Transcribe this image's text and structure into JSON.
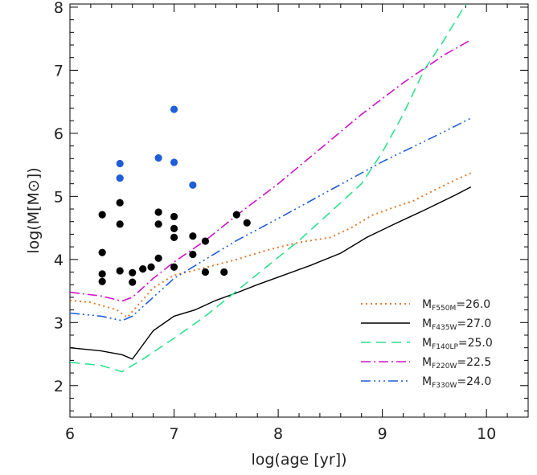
{
  "chart_data": {
    "type": "scatter",
    "xlabel": "log(age [yr])",
    "ylabel": "log(M[M⊙])",
    "xlim": [
      6,
      10.4
    ],
    "ylim": [
      1.5,
      8.05
    ],
    "x_ticks": [
      "6",
      "7",
      "8",
      "9",
      "10"
    ],
    "y_ticks": [
      "2",
      "3",
      "4",
      "5",
      "6",
      "7",
      "8"
    ],
    "grid": false,
    "legend_position": "bottom-right",
    "scatter_series": [
      {
        "color": "#000000",
        "points": [
          [
            6.31,
            4.71
          ],
          [
            6.31,
            4.11
          ],
          [
            6.31,
            3.77
          ],
          [
            6.31,
            3.65
          ],
          [
            6.48,
            4.9
          ],
          [
            6.48,
            4.56
          ],
          [
            6.48,
            3.82
          ],
          [
            6.6,
            3.79
          ],
          [
            6.6,
            3.64
          ],
          [
            6.7,
            3.85
          ],
          [
            6.78,
            3.88
          ],
          [
            6.85,
            4.75
          ],
          [
            6.85,
            4.56
          ],
          [
            6.85,
            4.02
          ],
          [
            7.0,
            4.68
          ],
          [
            7.0,
            4.49
          ],
          [
            7.0,
            4.35
          ],
          [
            7.0,
            3.88
          ],
          [
            7.18,
            4.37
          ],
          [
            7.18,
            4.08
          ],
          [
            7.3,
            4.29
          ],
          [
            7.3,
            3.8
          ],
          [
            7.48,
            3.8
          ],
          [
            7.6,
            4.71
          ],
          [
            7.7,
            4.58
          ]
        ]
      },
      {
        "color": "#1f5ed8",
        "points": [
          [
            6.48,
            5.52
          ],
          [
            6.48,
            5.29
          ],
          [
            6.85,
            5.61
          ],
          [
            7.0,
            6.38
          ],
          [
            7.0,
            5.54
          ],
          [
            7.18,
            5.18
          ]
        ]
      }
    ],
    "curves": [
      {
        "label_main": "M",
        "label_sub": "F550M",
        "label_val": "=26.0",
        "color": "#e07a30",
        "dash": "2,4",
        "width": 2,
        "x": [
          6.0,
          6.2,
          6.45,
          6.55,
          6.8,
          7.0,
          7.3,
          7.6,
          7.9,
          8.2,
          8.5,
          8.7,
          8.9,
          9.1,
          9.3,
          9.5,
          9.7,
          9.85
        ],
        "y": [
          3.35,
          3.32,
          3.2,
          3.08,
          3.55,
          3.75,
          3.87,
          4.0,
          4.15,
          4.27,
          4.35,
          4.5,
          4.7,
          4.82,
          4.93,
          5.1,
          5.26,
          5.37
        ]
      },
      {
        "label_main": "M",
        "label_sub": "F435W",
        "label_val": "=27.0",
        "color": "#000000",
        "dash": "",
        "width": 1.4,
        "x": [
          6.0,
          6.3,
          6.5,
          6.6,
          6.8,
          7.0,
          7.2,
          7.4,
          7.6,
          7.8,
          8.0,
          8.3,
          8.6,
          8.85,
          9.1,
          9.4,
          9.7,
          9.85
        ],
        "y": [
          2.6,
          2.55,
          2.49,
          2.42,
          2.87,
          3.1,
          3.2,
          3.35,
          3.47,
          3.6,
          3.72,
          3.9,
          4.1,
          4.35,
          4.55,
          4.78,
          5.02,
          5.15
        ]
      },
      {
        "label_main": "M",
        "label_sub": "F140LP",
        "label_val": "=25.0",
        "color": "#2ee08c",
        "dash": "12,7",
        "width": 1.6,
        "x": [
          6.0,
          6.3,
          6.5,
          6.7,
          7.0,
          7.3,
          7.6,
          7.9,
          8.2,
          8.5,
          8.8,
          9.0,
          9.2,
          9.4,
          9.6,
          9.8
        ],
        "y": [
          2.37,
          2.32,
          2.22,
          2.42,
          2.75,
          3.1,
          3.5,
          3.9,
          4.3,
          4.75,
          5.2,
          5.7,
          6.3,
          7.0,
          7.5,
          8.05
        ]
      },
      {
        "label_main": "M",
        "label_sub": "F220W",
        "label_val": "=22.5",
        "color": "#d014c9",
        "dash": "12,4,2,4",
        "width": 1.6,
        "x": [
          6.0,
          6.3,
          6.5,
          6.6,
          6.8,
          7.0,
          7.3,
          7.6,
          8.0,
          8.4,
          8.8,
          9.2,
          9.6,
          9.85
        ],
        "y": [
          3.48,
          3.42,
          3.34,
          3.4,
          3.7,
          3.96,
          4.3,
          4.7,
          5.2,
          5.75,
          6.3,
          6.8,
          7.25,
          7.48
        ]
      },
      {
        "label_main": "M",
        "label_sub": "F330W",
        "label_val": "=24.0",
        "color": "#1f5ed8",
        "dash": "12,4,2,4,2,4,2,4",
        "width": 1.6,
        "x": [
          6.0,
          6.3,
          6.5,
          6.6,
          6.8,
          7.0,
          7.3,
          7.6,
          8.0,
          8.5,
          9.0,
          9.5,
          9.85
        ],
        "y": [
          3.15,
          3.1,
          3.03,
          3.1,
          3.4,
          3.7,
          4.0,
          4.3,
          4.65,
          5.1,
          5.55,
          5.95,
          6.24
        ]
      }
    ]
  }
}
